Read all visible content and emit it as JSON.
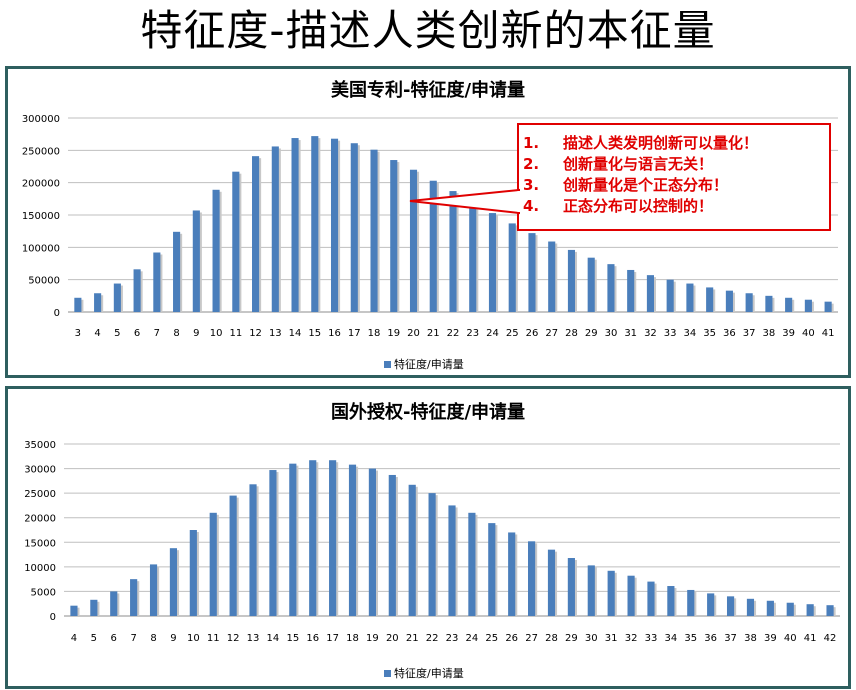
{
  "slide_title": "特征度-描述人类创新的本征量",
  "callout": {
    "color": "#e00000",
    "items": [
      {
        "num": "1.",
        "text": "描述人类发明创新可以量化！"
      },
      {
        "num": "2.",
        "text": "创新量化与语言无关！"
      },
      {
        "num": "3.",
        "text": "创新量化是个正态分布！"
      },
      {
        "num": "4.",
        "text": "正态分布可以控制的！"
      }
    ]
  },
  "chart_data": [
    {
      "type": "bar",
      "title": "美国专利-特征度/申请量",
      "legend": "特征度/申请量",
      "legend_position": "bottom",
      "bar_color": "#4a7ebb",
      "categories": [
        "3",
        "4",
        "5",
        "6",
        "7",
        "8",
        "9",
        "10",
        "11",
        "12",
        "13",
        "14",
        "15",
        "16",
        "17",
        "18",
        "19",
        "20",
        "21",
        "22",
        "23",
        "24",
        "25",
        "26",
        "27",
        "28",
        "29",
        "30",
        "31",
        "32",
        "33",
        "34",
        "35",
        "36",
        "37",
        "38",
        "39",
        "40",
        "41"
      ],
      "values": [
        22000,
        29000,
        44000,
        66000,
        92000,
        124000,
        157000,
        189000,
        217000,
        241000,
        256000,
        269000,
        272000,
        268000,
        261000,
        251000,
        235000,
        220000,
        203000,
        187000,
        170000,
        153000,
        137000,
        122000,
        109000,
        96000,
        84000,
        74000,
        65000,
        57000,
        50000,
        44000,
        38000,
        33000,
        29000,
        25000,
        22000,
        19000,
        16000
      ],
      "ylim": [
        0,
        300000
      ],
      "yticks": [
        "0",
        "50000",
        "100000",
        "150000",
        "200000",
        "250000",
        "300000"
      ],
      "grid": true
    },
    {
      "type": "bar",
      "title": "国外授权-特征度/申请量",
      "legend": "特征度/申请量",
      "legend_position": "bottom",
      "bar_color": "#4a7ebb",
      "categories": [
        "4",
        "5",
        "6",
        "7",
        "8",
        "9",
        "10",
        "11",
        "12",
        "13",
        "14",
        "15",
        "16",
        "17",
        "18",
        "19",
        "20",
        "21",
        "22",
        "23",
        "24",
        "25",
        "26",
        "27",
        "28",
        "29",
        "30",
        "31",
        "32",
        "33",
        "34",
        "35",
        "36",
        "37",
        "38",
        "39",
        "40",
        "41",
        "42"
      ],
      "values": [
        2100,
        3300,
        5000,
        7500,
        10500,
        13800,
        17500,
        21000,
        24500,
        26800,
        29700,
        31000,
        31700,
        31700,
        30800,
        30000,
        28700,
        26700,
        25000,
        22500,
        21000,
        18900,
        17000,
        15200,
        13500,
        11800,
        10300,
        9200,
        8200,
        7000,
        6100,
        5300,
        4600,
        4000,
        3500,
        3100,
        2700,
        2400,
        2200
      ],
      "ylim": [
        0,
        35000
      ],
      "yticks": [
        "0",
        "5000",
        "10000",
        "15000",
        "20000",
        "25000",
        "30000",
        "35000"
      ],
      "grid": true
    }
  ]
}
